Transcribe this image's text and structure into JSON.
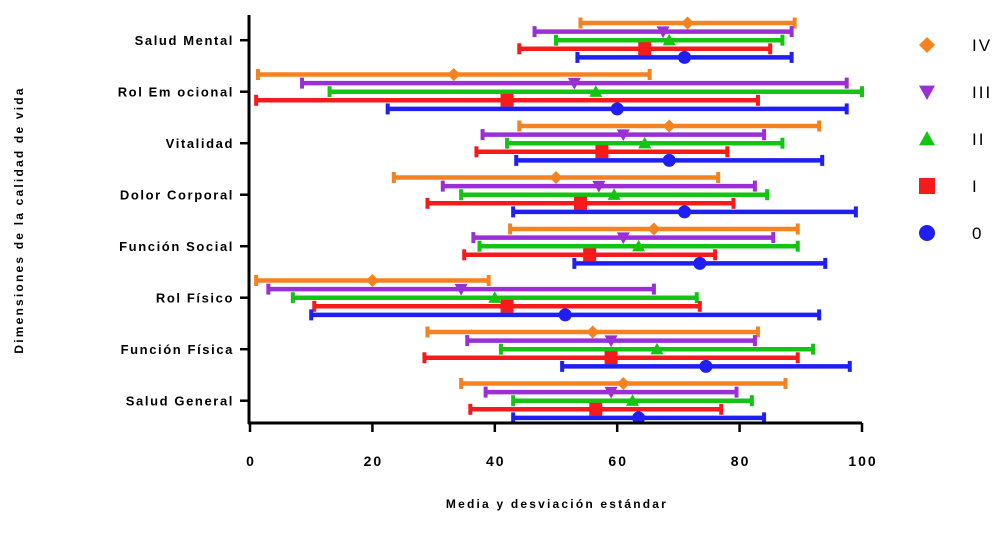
{
  "chart_data": {
    "type": "error-bar-dot",
    "orientation": "horizontal",
    "xlabel": "Media y desviación estándar",
    "ylabel": "Dimensiones de la calidad de vida",
    "xlim": [
      0,
      100
    ],
    "xticks": [
      0,
      20,
      40,
      60,
      80,
      100
    ],
    "legend_position": "right",
    "categories": [
      "Salud Mental",
      "Rol Em ocional",
      "Vitalidad",
      "Dolor Corporal",
      "Función Social",
      "Rol Físico",
      "Función Física",
      "Salud General"
    ],
    "series": [
      {
        "name": "IV",
        "color": "#f58220",
        "marker": "diamond",
        "mean": [
          71.5,
          33.3,
          68.5,
          50.0,
          66.0,
          20.0,
          56.0,
          61.0
        ],
        "sd": [
          17.5,
          32.0,
          24.5,
          26.5,
          23.5,
          19.0,
          27.0,
          26.5
        ]
      },
      {
        "name": "III",
        "color": "#9b2fd6",
        "marker": "triangle-down",
        "mean": [
          67.5,
          53.0,
          61.0,
          57.0,
          61.0,
          34.5,
          59.0,
          59.0
        ],
        "sd": [
          21.0,
          44.5,
          23.0,
          25.5,
          24.5,
          31.5,
          23.5,
          20.5
        ]
      },
      {
        "name": "II",
        "color": "#13c413",
        "marker": "triangle-up",
        "mean": [
          68.5,
          56.5,
          64.5,
          59.5,
          63.5,
          40.0,
          66.5,
          62.5
        ],
        "sd": [
          18.5,
          43.5,
          22.5,
          25.0,
          26.0,
          33.0,
          25.5,
          19.5
        ]
      },
      {
        "name": "I",
        "color": "#f51b1b",
        "marker": "square",
        "mean": [
          64.5,
          42.0,
          57.5,
          54.0,
          55.5,
          42.0,
          59.0,
          56.5
        ],
        "sd": [
          20.5,
          41.0,
          20.5,
          25.0,
          20.5,
          31.5,
          30.5,
          20.5
        ]
      },
      {
        "name": "0",
        "color": "#1f1ff2",
        "marker": "circle",
        "mean": [
          71.0,
          60.0,
          68.5,
          71.0,
          73.5,
          51.5,
          74.5,
          63.5
        ],
        "sd": [
          17.5,
          37.5,
          25.0,
          28.0,
          20.5,
          41.5,
          23.5,
          20.5
        ]
      }
    ]
  }
}
